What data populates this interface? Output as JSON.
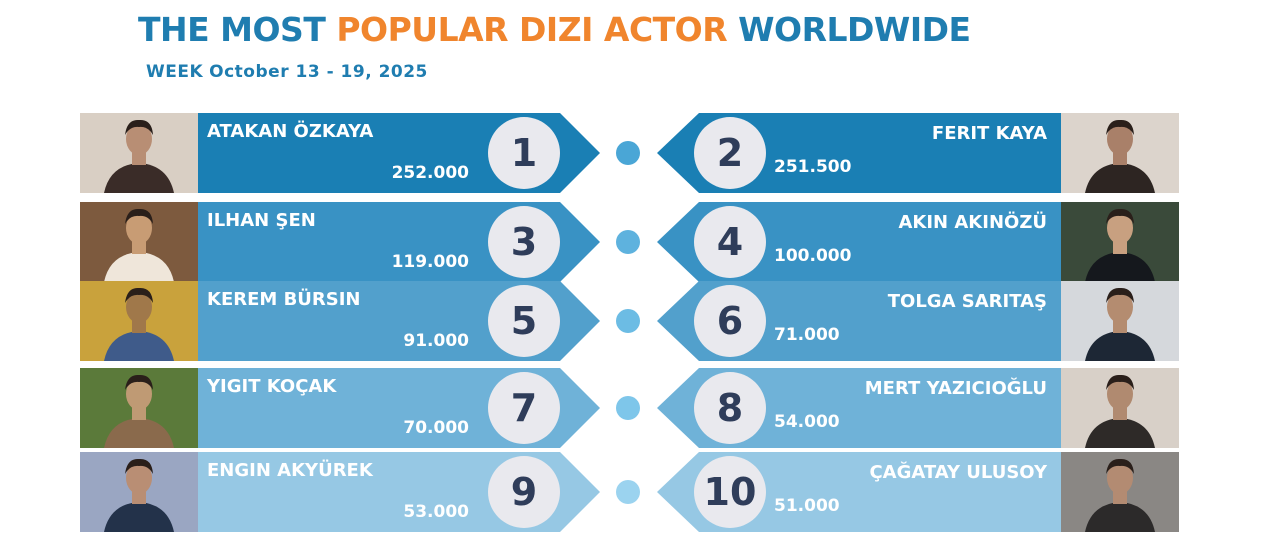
{
  "header": {
    "title_part1": "THE MOST",
    "title_part2": "POPULAR DIZI ACTOR",
    "title_part3": "WORLDWIDE",
    "subtitle_week": "WEEK",
    "subtitle_dates": "October 13 - 19, 2025"
  },
  "colors": {
    "title_blue": "#1f7db0",
    "title_orange": "#f0852d",
    "rank_circle": "#e9e9ee",
    "rank_text": "#2f3d5a"
  },
  "rows": [
    {
      "color": "#1a7fb4",
      "left": {
        "rank": "1",
        "name": "ATAKAN ÖZKAYA",
        "votes": "252.000",
        "photo_icon": "actor-photo-icon"
      },
      "right": {
        "rank": "2",
        "name": "FERIT KAYA",
        "votes": "251.500",
        "photo_icon": "actor-photo-icon"
      }
    },
    {
      "color": "#3992c4",
      "left": {
        "rank": "3",
        "name": "ILHAN ŞEN",
        "votes": "119.000",
        "photo_icon": "actor-photo-icon"
      },
      "right": {
        "rank": "4",
        "name": "AKIN AKINÖZÜ",
        "votes": "100.000",
        "photo_icon": "actor-photo-icon"
      }
    },
    {
      "color": "#52a0cc",
      "left": {
        "rank": "5",
        "name": "KEREM BÜRSIN",
        "votes": "91.000",
        "photo_icon": "actor-photo-icon"
      },
      "right": {
        "rank": "6",
        "name": "TOLGA SARITAŞ",
        "votes": "71.000",
        "photo_icon": "actor-photo-icon"
      }
    },
    {
      "color": "#6fb2d8",
      "left": {
        "rank": "7",
        "name": "YIGIT KOÇAK",
        "votes": "70.000",
        "photo_icon": "actor-photo-icon"
      },
      "right": {
        "rank": "8",
        "name": "MERT YAZICIOĞLU",
        "votes": "54.000",
        "photo_icon": "actor-photo-icon"
      }
    },
    {
      "color": "#96c8e4",
      "left": {
        "rank": "9",
        "name": "ENGIN AKYÜREK",
        "votes": "53.000",
        "photo_icon": "actor-photo-icon"
      },
      "right": {
        "rank": "10",
        "name": "ÇAĞATAY ULUSOY",
        "votes": "51.000",
        "photo_icon": "actor-photo-icon"
      }
    }
  ]
}
